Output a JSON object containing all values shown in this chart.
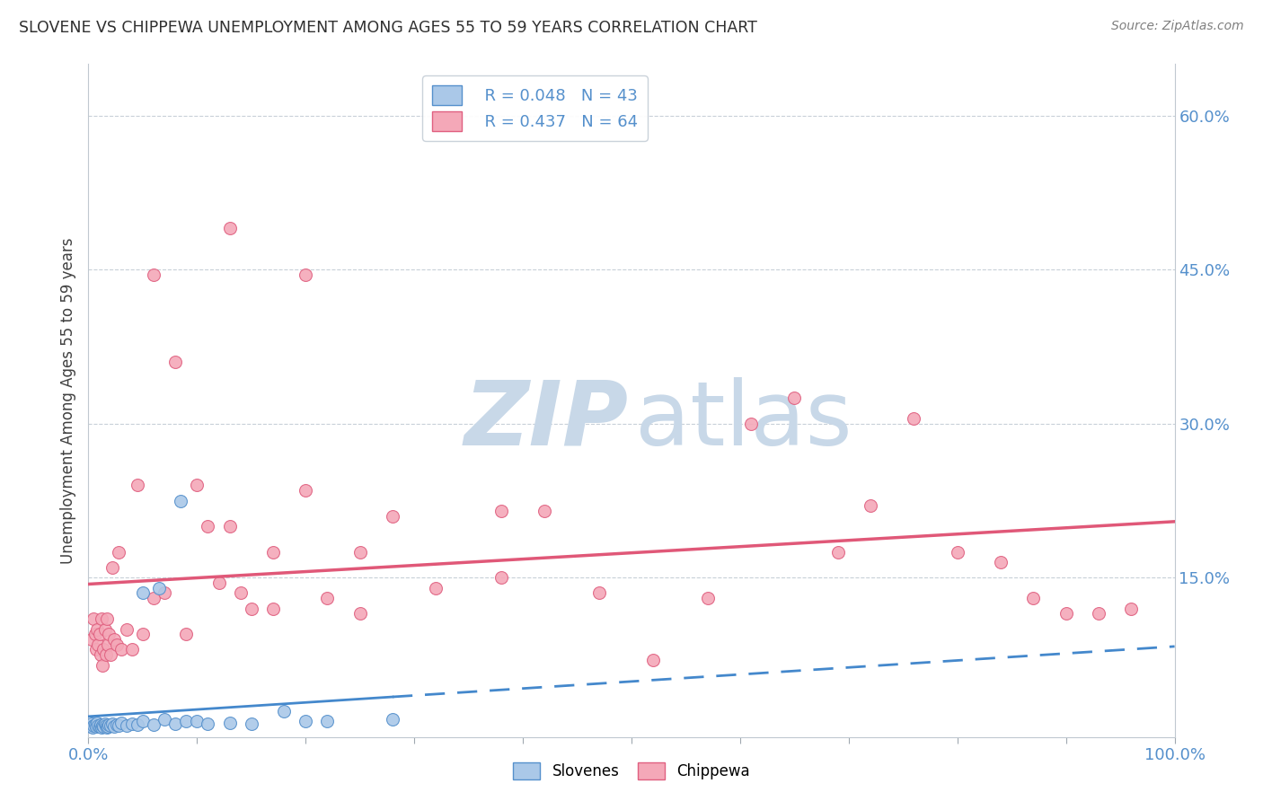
{
  "title": "SLOVENE VS CHIPPEWA UNEMPLOYMENT AMONG AGES 55 TO 59 YEARS CORRELATION CHART",
  "source": "Source: ZipAtlas.com",
  "ylabel": "Unemployment Among Ages 55 to 59 years",
  "xlim": [
    0.0,
    1.0
  ],
  "ylim": [
    -0.005,
    0.65
  ],
  "xtick_positions": [
    0.0,
    0.1,
    0.2,
    0.3,
    0.4,
    0.5,
    0.6,
    0.7,
    0.8,
    0.9,
    1.0
  ],
  "xticklabels": [
    "0.0%",
    "",
    "",
    "",
    "",
    "",
    "",
    "",
    "",
    "",
    "100.0%"
  ],
  "ytick_positions": [
    0.0,
    0.15,
    0.3,
    0.45,
    0.6
  ],
  "yticklabels_right": [
    "",
    "15.0%",
    "30.0%",
    "45.0%",
    "60.0%"
  ],
  "slovene_R": "0.048",
  "slovene_N": "43",
  "chippewa_R": "0.437",
  "chippewa_N": "64",
  "slovene_color": "#aac8e8",
  "chippewa_color": "#f4a8b8",
  "slovene_edge_color": "#5590cc",
  "chippewa_edge_color": "#e06080",
  "slovene_line_color": "#4488cc",
  "chippewa_line_color": "#e05878",
  "tick_color": "#5590cc",
  "background_color": "#ffffff",
  "watermark_zip_color": "#c8d8e8",
  "watermark_atlas_color": "#c8d8e8",
  "grid_color": "#c8d0d8",
  "slovene_scatter_x": [
    0.002,
    0.003,
    0.004,
    0.005,
    0.006,
    0.007,
    0.008,
    0.009,
    0.01,
    0.011,
    0.012,
    0.013,
    0.014,
    0.015,
    0.016,
    0.017,
    0.018,
    0.019,
    0.02,
    0.022,
    0.024,
    0.026,
    0.028,
    0.03,
    0.035,
    0.04,
    0.045,
    0.05,
    0.06,
    0.07,
    0.08,
    0.09,
    0.1,
    0.11,
    0.13,
    0.15,
    0.18,
    0.2,
    0.22,
    0.28,
    0.05,
    0.065,
    0.085
  ],
  "slovene_scatter_y": [
    0.005,
    0.008,
    0.004,
    0.006,
    0.007,
    0.005,
    0.009,
    0.006,
    0.005,
    0.007,
    0.004,
    0.006,
    0.005,
    0.008,
    0.006,
    0.004,
    0.005,
    0.007,
    0.006,
    0.008,
    0.005,
    0.007,
    0.006,
    0.009,
    0.006,
    0.008,
    0.007,
    0.01,
    0.007,
    0.012,
    0.008,
    0.01,
    0.01,
    0.008,
    0.009,
    0.008,
    0.02,
    0.01,
    0.01,
    0.012,
    0.135,
    0.14,
    0.225
  ],
  "chippewa_scatter_x": [
    0.003,
    0.005,
    0.006,
    0.007,
    0.008,
    0.009,
    0.01,
    0.011,
    0.012,
    0.013,
    0.014,
    0.015,
    0.016,
    0.017,
    0.018,
    0.019,
    0.02,
    0.022,
    0.024,
    0.026,
    0.028,
    0.03,
    0.035,
    0.04,
    0.045,
    0.05,
    0.06,
    0.07,
    0.08,
    0.09,
    0.1,
    0.11,
    0.12,
    0.13,
    0.14,
    0.15,
    0.17,
    0.2,
    0.22,
    0.25,
    0.28,
    0.32,
    0.38,
    0.42,
    0.47,
    0.52,
    0.57,
    0.61,
    0.65,
    0.69,
    0.72,
    0.76,
    0.8,
    0.84,
    0.87,
    0.9,
    0.93,
    0.96,
    0.17,
    0.25,
    0.38,
    0.13,
    0.2,
    0.06
  ],
  "chippewa_scatter_y": [
    0.09,
    0.11,
    0.095,
    0.08,
    0.1,
    0.085,
    0.095,
    0.075,
    0.11,
    0.065,
    0.08,
    0.1,
    0.075,
    0.11,
    0.085,
    0.095,
    0.075,
    0.16,
    0.09,
    0.085,
    0.175,
    0.08,
    0.1,
    0.08,
    0.24,
    0.095,
    0.13,
    0.135,
    0.36,
    0.095,
    0.24,
    0.2,
    0.145,
    0.2,
    0.135,
    0.12,
    0.175,
    0.235,
    0.13,
    0.175,
    0.21,
    0.14,
    0.215,
    0.215,
    0.135,
    0.07,
    0.13,
    0.3,
    0.325,
    0.175,
    0.22,
    0.305,
    0.175,
    0.165,
    0.13,
    0.115,
    0.115,
    0.12,
    0.12,
    0.115,
    0.15,
    0.49,
    0.445,
    0.445
  ]
}
